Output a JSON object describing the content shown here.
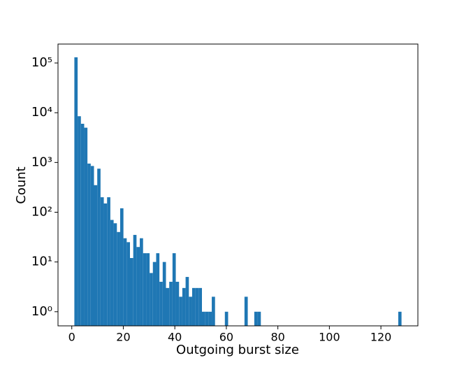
{
  "chart_data": {
    "type": "histogram",
    "log_y": true,
    "color": "#1f77b4",
    "xlabel": "Outgoing burst size",
    "ylabel": "Count",
    "bins": [
      1,
      2.27,
      3.54,
      4.81,
      6.08,
      7.35,
      8.62,
      9.89,
      11.16,
      12.43,
      13.7,
      14.97,
      16.24,
      17.51,
      18.78,
      20.05,
      21.32,
      22.59,
      23.86,
      25.13,
      26.4,
      27.67,
      28.94,
      30.21,
      31.48,
      32.75,
      34.02,
      35.29,
      36.56,
      37.83,
      39.1,
      40.37,
      41.64,
      42.91,
      44.18,
      45.45,
      46.72,
      47.99,
      49.26,
      50.53,
      51.8,
      53.07,
      54.34,
      55.61,
      56.88,
      58.15,
      59.42,
      60.69,
      61.96,
      63.23,
      64.5,
      65.77,
      67.04,
      68.31,
      69.58,
      70.85,
      72.12,
      73.39,
      74.66,
      75.93,
      77.2,
      78.47,
      79.74,
      81.01,
      82.28,
      83.55,
      84.82,
      86.09,
      87.36,
      88.63,
      89.9,
      91.17,
      92.44,
      93.71,
      94.98,
      96.25,
      97.52,
      98.79,
      100.06,
      101.33,
      102.6,
      103.87,
      105.14,
      106.41,
      107.68,
      108.95,
      110.22,
      111.49,
      112.76,
      114.03,
      115.3,
      116.57,
      117.84,
      119.11,
      120.38,
      121.65,
      122.92,
      124.19,
      125.46,
      126.73,
      128
    ],
    "values": [
      130000,
      8500,
      6000,
      5000,
      950,
      850,
      350,
      750,
      200,
      150,
      200,
      70,
      60,
      40,
      120,
      30,
      25,
      12,
      35,
      20,
      30,
      15,
      15,
      6,
      10,
      15,
      4,
      10,
      3,
      4,
      15,
      4,
      2,
      3,
      5,
      2,
      3,
      3,
      3,
      1,
      1,
      1,
      2,
      0,
      0,
      0,
      1,
      0,
      0,
      0,
      0,
      0,
      2,
      0,
      0,
      1,
      1,
      0,
      0,
      0,
      0,
      0,
      0,
      0,
      0,
      0,
      0,
      0,
      0,
      0,
      0,
      0,
      0,
      0,
      0,
      0,
      0,
      0,
      0,
      0,
      0,
      0,
      0,
      0,
      0,
      0,
      0,
      0,
      0,
      0,
      0,
      0,
      0,
      0,
      0,
      0,
      0,
      0,
      0,
      1
    ],
    "xlim": [
      -5.35,
      134.35
    ],
    "xticks": [
      0,
      20,
      40,
      60,
      80,
      100,
      120
    ],
    "ylim": [
      0.52,
      240000
    ],
    "yticks": [
      {
        "value": 1,
        "label": "10⁰"
      },
      {
        "value": 10,
        "label": "10¹"
      },
      {
        "value": 100,
        "label": "10²"
      },
      {
        "value": 1000,
        "label": "10³"
      },
      {
        "value": 10000,
        "label": "10⁴"
      },
      {
        "value": 100000,
        "label": "10⁵"
      }
    ]
  }
}
